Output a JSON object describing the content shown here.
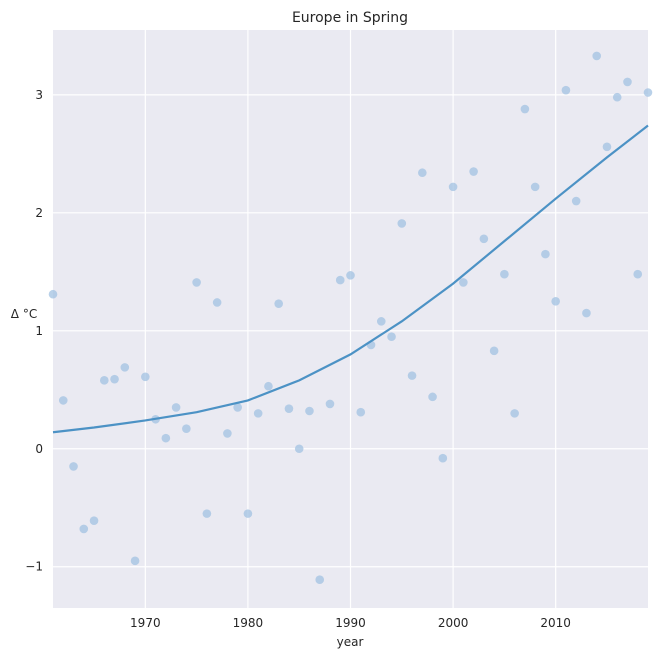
{
  "chart_data": {
    "type": "scatter",
    "title": "Europe in Spring",
    "xlabel": "year",
    "ylabel": "Δ °C",
    "xlim": [
      1961,
      2019
    ],
    "ylim": [
      -1.35,
      3.55
    ],
    "x_ticks": [
      1970,
      1980,
      1990,
      2000,
      2010
    ],
    "y_ticks": [
      -1,
      0,
      1,
      2,
      3
    ],
    "y_tick_labels": [
      "−1",
      "0",
      "1",
      "2",
      "3"
    ],
    "grid": true,
    "background": "#eaeaf2",
    "point_color": "#a1c1e1",
    "line_color": "#4c92c5",
    "series": [
      {
        "type": "scatter",
        "points": [
          [
            1961,
            1.31
          ],
          [
            1962,
            0.41
          ],
          [
            1963,
            -0.15
          ],
          [
            1964,
            -0.68
          ],
          [
            1965,
            -0.61
          ],
          [
            1966,
            0.58
          ],
          [
            1967,
            0.59
          ],
          [
            1968,
            0.69
          ],
          [
            1969,
            -0.95
          ],
          [
            1970,
            0.61
          ],
          [
            1971,
            0.25
          ],
          [
            1972,
            0.09
          ],
          [
            1973,
            0.35
          ],
          [
            1974,
            0.17
          ],
          [
            1975,
            1.41
          ],
          [
            1976,
            -0.55
          ],
          [
            1977,
            1.24
          ],
          [
            1978,
            0.13
          ],
          [
            1979,
            0.35
          ],
          [
            1980,
            -0.55
          ],
          [
            1981,
            0.3
          ],
          [
            1982,
            0.53
          ],
          [
            1983,
            1.23
          ],
          [
            1984,
            0.34
          ],
          [
            1985,
            0.0
          ],
          [
            1986,
            0.32
          ],
          [
            1987,
            -1.11
          ],
          [
            1988,
            0.38
          ],
          [
            1989,
            1.43
          ],
          [
            1990,
            1.47
          ],
          [
            1991,
            0.31
          ],
          [
            1992,
            0.88
          ],
          [
            1993,
            1.08
          ],
          [
            1994,
            0.95
          ],
          [
            1995,
            1.91
          ],
          [
            1996,
            0.62
          ],
          [
            1997,
            2.34
          ],
          [
            1998,
            0.44
          ],
          [
            1999,
            -0.08
          ],
          [
            2000,
            2.22
          ],
          [
            2001,
            1.41
          ],
          [
            2002,
            2.35
          ],
          [
            2003,
            1.78
          ],
          [
            2004,
            0.83
          ],
          [
            2005,
            1.48
          ],
          [
            2006,
            0.3
          ],
          [
            2007,
            2.88
          ],
          [
            2008,
            2.22
          ],
          [
            2009,
            1.65
          ],
          [
            2010,
            1.25
          ],
          [
            2011,
            3.04
          ],
          [
            2012,
            2.1
          ],
          [
            2013,
            1.15
          ],
          [
            2014,
            3.33
          ],
          [
            2015,
            2.56
          ],
          [
            2016,
            2.98
          ],
          [
            2017,
            3.11
          ],
          [
            2018,
            1.48
          ],
          [
            2019,
            3.02
          ]
        ]
      },
      {
        "type": "line",
        "points": [
          [
            1961,
            0.14
          ],
          [
            1965,
            0.18
          ],
          [
            1970,
            0.24
          ],
          [
            1975,
            0.31
          ],
          [
            1980,
            0.41
          ],
          [
            1985,
            0.58
          ],
          [
            1990,
            0.8
          ],
          [
            1995,
            1.08
          ],
          [
            2000,
            1.4
          ],
          [
            2005,
            1.76
          ],
          [
            2010,
            2.12
          ],
          [
            2015,
            2.47
          ],
          [
            2019,
            2.74
          ]
        ]
      }
    ]
  }
}
